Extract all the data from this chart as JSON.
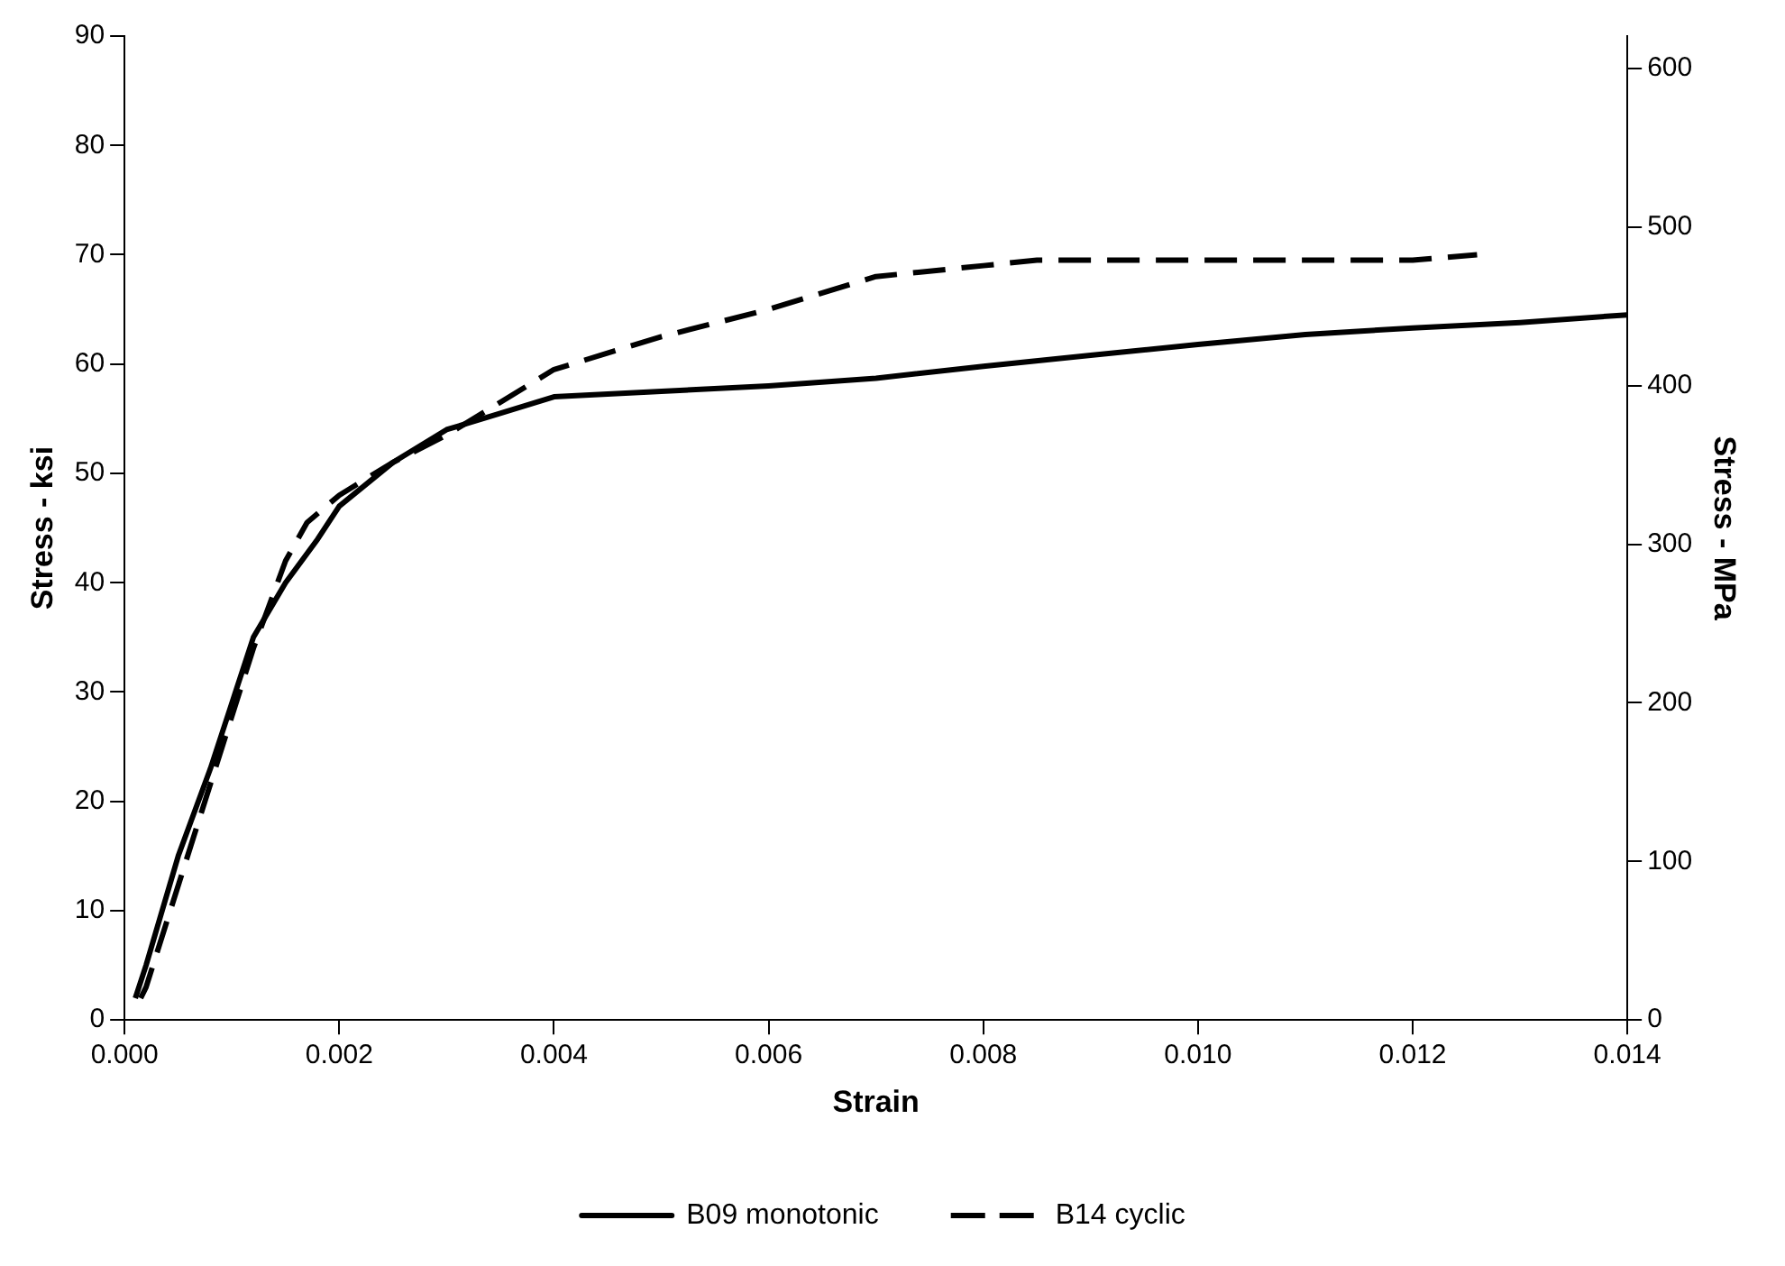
{
  "chart_data": {
    "type": "line",
    "xlabel": "Strain",
    "ylabel": "Stress - ksi",
    "y2label": "Stress - MPa",
    "xlim": [
      0,
      0.014
    ],
    "xticks": [
      {
        "value": 0,
        "label": "0.000"
      },
      {
        "value": 0.002,
        "label": "0.002"
      },
      {
        "value": 0.004,
        "label": "0.004"
      },
      {
        "value": 0.006,
        "label": "0.006"
      },
      {
        "value": 0.008,
        "label": "0.008"
      },
      {
        "value": 0.01,
        "label": "0.010"
      },
      {
        "value": 0.012,
        "label": "0.012"
      },
      {
        "value": 0.014,
        "label": "0.014"
      }
    ],
    "ylim": [
      0,
      90
    ],
    "yticks": [
      0,
      10,
      20,
      30,
      40,
      50,
      60,
      70,
      80,
      90
    ],
    "y2lim": [
      0,
      620.5
    ],
    "y2ticks": [
      0,
      100,
      200,
      300,
      400,
      500,
      600
    ],
    "grid": false,
    "legend": "bottom",
    "marker": "none",
    "series": [
      {
        "name": "B09 monotonic",
        "color": "#000000",
        "line_style": "solid",
        "x": [
          0.0001,
          0.0002,
          0.0005,
          0.0008,
          0.001,
          0.0012,
          0.0015,
          0.0018,
          0.002,
          0.0025,
          0.003,
          0.0035,
          0.004,
          0.005,
          0.006,
          0.007,
          0.008,
          0.009,
          0.01,
          0.011,
          0.012,
          0.013,
          0.014
        ],
        "values": [
          2,
          5,
          15,
          23,
          29,
          35,
          40,
          44,
          47,
          51,
          54,
          55.5,
          57,
          57.5,
          58,
          58.7,
          59.8,
          60.8,
          61.8,
          62.7,
          63.3,
          63.8,
          64.5
        ]
      },
      {
        "name": "B14 cyclic",
        "color": "#000000",
        "line_style": "dashed",
        "x": [
          0.00015,
          0.0002,
          0.0012,
          0.0015,
          0.0017,
          0.002,
          0.0025,
          0.003,
          0.004,
          0.005,
          0.006,
          0.007,
          0.008,
          0.0085,
          0.01,
          0.012,
          0.0126
        ],
        "values": [
          2,
          3,
          34,
          42,
          45.5,
          48,
          51,
          53.5,
          59.5,
          62.5,
          65,
          68,
          69,
          69.5,
          69.5,
          69.5,
          70
        ]
      }
    ]
  }
}
